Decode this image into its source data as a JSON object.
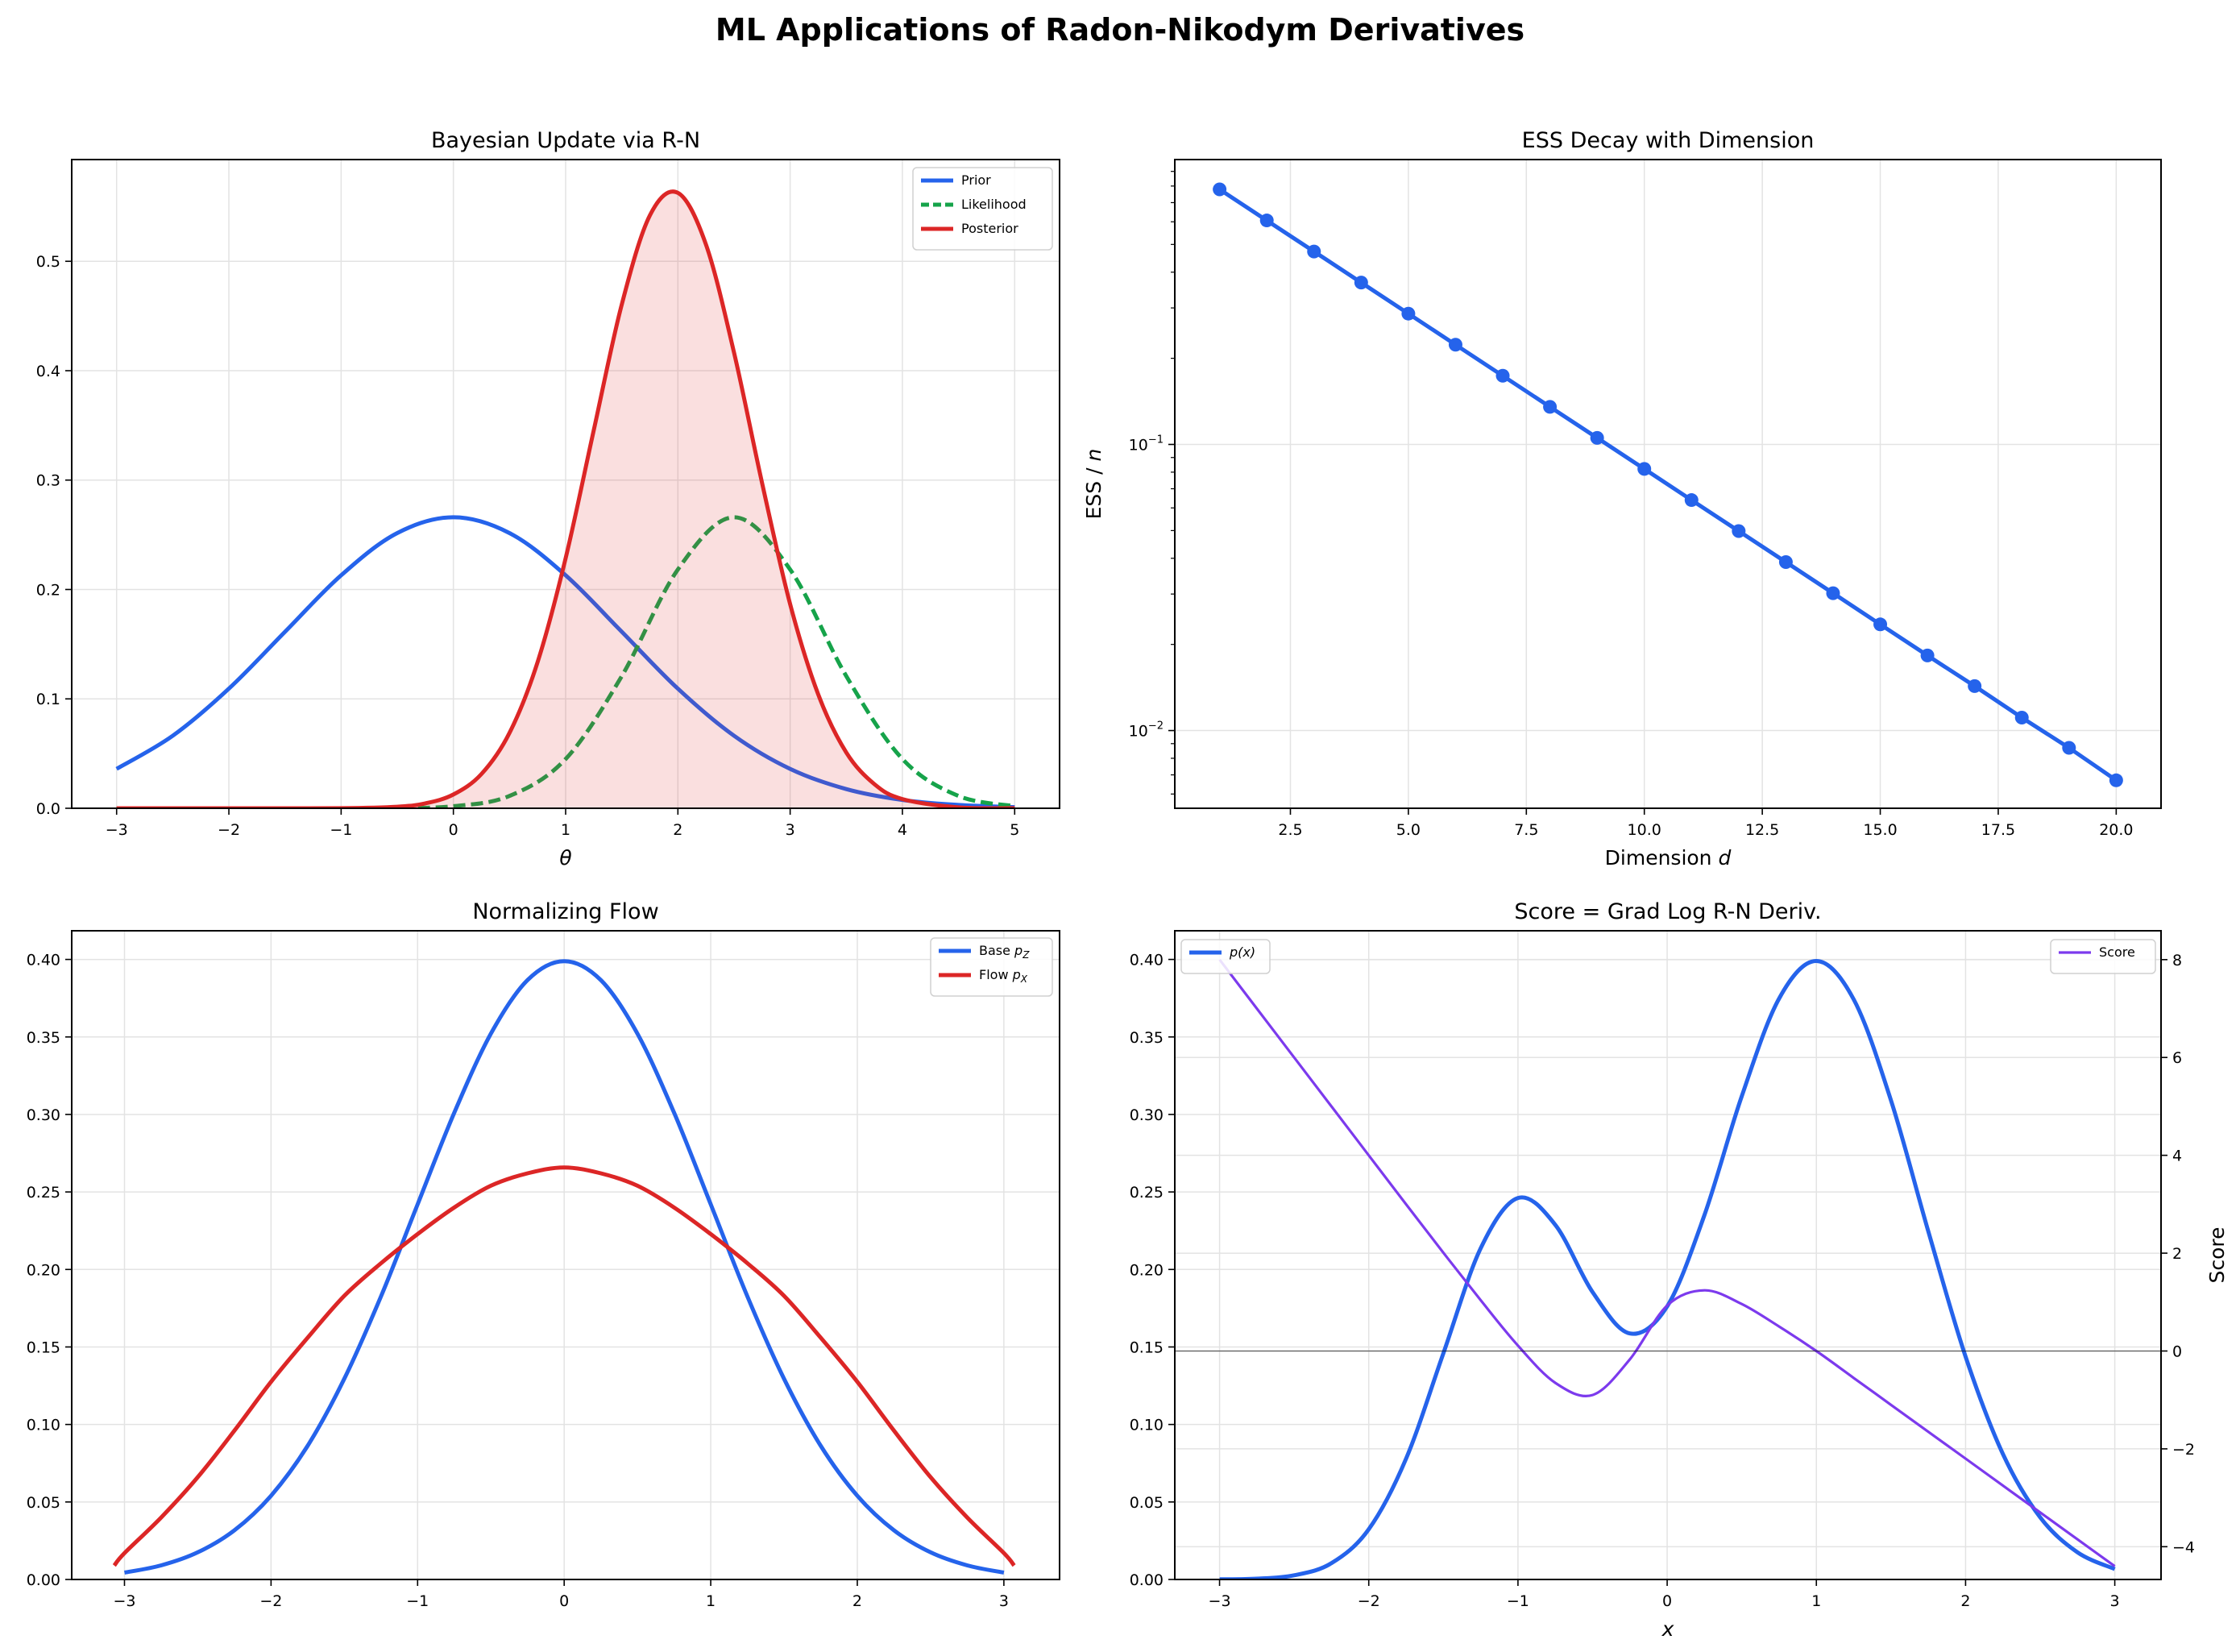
{
  "figure": {
    "title": "ML Applications of Radon-Nikodym Derivatives"
  },
  "chart_data": [
    {
      "type": "line",
      "title": "Bayesian Update via R-N",
      "xlabel_parts": [
        "θ"
      ],
      "xlim": [
        -3.4,
        5.4
      ],
      "ylim": [
        0,
        0.593
      ],
      "grid": true,
      "legend": "top-right",
      "xticks": [
        -3,
        -2,
        -1,
        0,
        1,
        2,
        3,
        4,
        5
      ],
      "xtick_labels": [
        "−3",
        "−2",
        "−1",
        "0",
        "1",
        "2",
        "3",
        "4",
        "5"
      ],
      "yticks": [
        0,
        0.1,
        0.2,
        0.3,
        0.4,
        0.5
      ],
      "ytick_labels": [
        "0.0",
        "0.1",
        "0.2",
        "0.3",
        "0.4",
        "0.5"
      ],
      "series": [
        {
          "name": "Prior",
          "color": "#2563eb",
          "style": "solid",
          "x": [
            -3,
            -2.5,
            -2,
            -1.5,
            -1,
            -0.5,
            0,
            0.5,
            1,
            1.5,
            2,
            2.5,
            3,
            3.5,
            4,
            4.5,
            5
          ],
          "y": [
            0.036,
            0.0663,
            0.1093,
            0.1613,
            0.213,
            0.2516,
            0.266,
            0.2516,
            0.213,
            0.1613,
            0.1093,
            0.0663,
            0.036,
            0.0175,
            0.0076,
            0.003,
            0.001
          ]
        },
        {
          "name": "Likelihood",
          "color": "#16a34a",
          "style": "dashed",
          "x": [
            -3,
            -2.5,
            -2,
            -1.5,
            -1,
            -0.5,
            0,
            0.5,
            1,
            1.5,
            2,
            2.5,
            3,
            3.5,
            4,
            4.5,
            5
          ],
          "y": [
            0,
            0,
            0,
            0,
            2e-05,
            0.0002,
            0.0019,
            0.0113,
            0.045,
            0.1208,
            0.2183,
            0.266,
            0.2183,
            0.1208,
            0.045,
            0.0113,
            0.0019
          ]
        },
        {
          "name": "Posterior",
          "color": "#dc2626",
          "style": "solid",
          "fill": "#dc2626",
          "x": [
            -3,
            -2,
            -1,
            -0.5,
            -0.25,
            0,
            0.25,
            0.5,
            0.75,
            1,
            1.25,
            1.5,
            1.75,
            2,
            2.25,
            2.5,
            2.75,
            3,
            3.25,
            3.5,
            3.75,
            4,
            4.5,
            5
          ],
          "y": [
            0,
            0,
            0.0001,
            0.0014,
            0.0045,
            0.0126,
            0.0313,
            0.0689,
            0.1336,
            0.2286,
            0.3453,
            0.4606,
            0.5419,
            0.5626,
            0.5154,
            0.4165,
            0.2973,
            0.1867,
            0.104,
            0.051,
            0.0221,
            0.0084,
            0.0008,
            0.0001
          ]
        }
      ]
    },
    {
      "type": "line",
      "title": "ESS Decay with Dimension",
      "xlabel_parts": [
        "Dimension ",
        "d"
      ],
      "ylabel_parts": [
        "ESS / ",
        "n"
      ],
      "yscale": "log",
      "xlim": [
        0.05,
        20.95
      ],
      "ylim": [
        0.00535,
        0.99
      ],
      "grid": true,
      "xticks": [
        2.5,
        5,
        7.5,
        10,
        12.5,
        15,
        17.5,
        20
      ],
      "xtick_labels": [
        "2.5",
        "5.0",
        "7.5",
        "10.0",
        "12.5",
        "15.0",
        "17.5",
        "20.0"
      ],
      "yticks": [
        0.1,
        0.01
      ],
      "ytick_labels": [
        {
          "base": "10",
          "exp": "−1"
        },
        {
          "base": "10",
          "exp": "−2"
        }
      ],
      "series": [
        {
          "color": "#2563eb",
          "style": "solid",
          "marker": "circle",
          "x": [
            1,
            2,
            3,
            4,
            5,
            6,
            7,
            8,
            9,
            10,
            11,
            12,
            13,
            14,
            15,
            16,
            17,
            18,
            19,
            20
          ],
          "y": [
            0.7788,
            0.6065,
            0.4724,
            0.3679,
            0.2865,
            0.2231,
            0.1738,
            0.1353,
            0.1054,
            0.0821,
            0.0639,
            0.0498,
            0.0388,
            0.0302,
            0.0235,
            0.0183,
            0.0143,
            0.0111,
            0.0087,
            0.0067
          ]
        }
      ]
    },
    {
      "type": "line",
      "title": "Normalizing Flow",
      "xlim": [
        -3.36,
        3.38
      ],
      "ylim": [
        0,
        0.4185
      ],
      "grid": true,
      "legend": "top-right",
      "xticks": [
        -3,
        -2,
        -1,
        0,
        1,
        2,
        3
      ],
      "xtick_labels": [
        "−3",
        "−2",
        "−1",
        "0",
        "1",
        "2",
        "3"
      ],
      "yticks": [
        0,
        0.05,
        0.1,
        0.15,
        0.2,
        0.25,
        0.3,
        0.35,
        0.4
      ],
      "ytick_labels": [
        "0.00",
        "0.05",
        "0.10",
        "0.15",
        "0.20",
        "0.25",
        "0.30",
        "0.35",
        "0.40"
      ],
      "series": [
        {
          "name": "Base p_Z",
          "name_parts": [
            "Base ",
            "p",
            "Z"
          ],
          "color": "#2563eb",
          "style": "solid",
          "x": [
            -3,
            -2.75,
            -2.5,
            -2.25,
            -2,
            -1.75,
            -1.5,
            -1.25,
            -1,
            -0.75,
            -0.5,
            -0.25,
            0,
            0.25,
            0.5,
            0.75,
            1,
            1.25,
            1.5,
            1.75,
            2,
            2.25,
            2.5,
            2.75,
            3
          ],
          "y": [
            0.0044,
            0.0091,
            0.0175,
            0.0317,
            0.054,
            0.0863,
            0.1295,
            0.1826,
            0.242,
            0.3011,
            0.3521,
            0.3867,
            0.3989,
            0.3867,
            0.3521,
            0.3011,
            0.242,
            0.1826,
            0.1295,
            0.0863,
            0.054,
            0.0317,
            0.0175,
            0.0091,
            0.0044
          ]
        },
        {
          "name": "Flow p_X",
          "name_parts": [
            "Flow ",
            "p",
            "X"
          ],
          "color": "#dc2626",
          "style": "solid",
          "x": [
            -3.07,
            -3,
            -2.75,
            -2.5,
            -2.25,
            -2,
            -1.75,
            -1.5,
            -1.25,
            -1,
            -0.75,
            -0.5,
            -0.25,
            0,
            0.25,
            0.5,
            0.75,
            1,
            1.25,
            1.5,
            1.75,
            2,
            2.25,
            2.5,
            2.75,
            3,
            3.07
          ],
          "y": [
            0.009,
            0.017,
            0.04,
            0.066,
            0.096,
            0.1275,
            0.156,
            0.183,
            0.204,
            0.2228,
            0.24,
            0.254,
            0.262,
            0.2658,
            0.262,
            0.254,
            0.24,
            0.2228,
            0.204,
            0.183,
            0.156,
            0.1275,
            0.096,
            0.066,
            0.04,
            0.017,
            0.009
          ]
        }
      ]
    },
    {
      "type": "line",
      "title": "Score = Grad Log R-N Deriv.",
      "xlabel_parts": [
        "x"
      ],
      "ylabel_right": "Score",
      "ylabel_right_color": "#7c3aed",
      "xlim": [
        -3.3,
        3.31
      ],
      "ylim": [
        0,
        0.4185
      ],
      "ylim_right": [
        -4.67,
        8.59
      ],
      "grid": true,
      "hline_right": 0,
      "xticks": [
        -3,
        -2,
        -1,
        0,
        1,
        2,
        3
      ],
      "xtick_labels": [
        "−3",
        "−2",
        "−1",
        "0",
        "1",
        "2",
        "3"
      ],
      "yticks": [
        0,
        0.05,
        0.1,
        0.15,
        0.2,
        0.25,
        0.3,
        0.35,
        0.4
      ],
      "ytick_labels": [
        "0.00",
        "0.05",
        "0.10",
        "0.15",
        "0.20",
        "0.25",
        "0.30",
        "0.35",
        "0.40"
      ],
      "yticks_right": [
        -4,
        -2,
        0,
        2,
        4,
        6,
        8
      ],
      "ytick_labels_right": [
        "−4",
        "−2",
        "0",
        "2",
        "4",
        "6",
        "8"
      ],
      "series": [
        {
          "name": "p(x)",
          "name_parts": [
            "p(x)"
          ],
          "axis": "left",
          "legend": "top-left",
          "color": "#2563eb",
          "style": "solid",
          "x": [
            -3,
            -2.75,
            -2.5,
            -2.25,
            -2,
            -1.75,
            -1.5,
            -1.25,
            -1,
            -0.75,
            -0.5,
            -0.25,
            0,
            0.25,
            0.5,
            0.75,
            1,
            1.25,
            1.5,
            1.75,
            2,
            2.25,
            2.5,
            2.75,
            3
          ],
          "y": [
            0.0001,
            0.0005,
            0.0027,
            0.0105,
            0.0324,
            0.0779,
            0.1459,
            0.2136,
            0.2461,
            0.2288,
            0.1854,
            0.1587,
            0.1762,
            0.2352,
            0.3118,
            0.3748,
            0.399,
            0.3743,
            0.3091,
            0.2247,
            0.1438,
            0.081,
            0.0401,
            0.0175,
            0.0067
          ]
        },
        {
          "name": "Score",
          "name_parts": [
            "Score"
          ],
          "axis": "right",
          "legend": "top-right",
          "color": "#7c3aed",
          "style": "solid",
          "x": [
            -3,
            -2.75,
            -2.5,
            -2.25,
            -2,
            -1.75,
            -1.5,
            -1.25,
            -1,
            -0.75,
            -0.5,
            -0.25,
            0,
            0.25,
            0.5,
            0.75,
            1,
            1.25,
            1.5,
            1.75,
            2,
            2.25,
            2.5,
            2.75,
            3
          ],
          "y": [
            8.0,
            7.0,
            6.0,
            5.0,
            4.0,
            3.0,
            2.01,
            1.04,
            0.11,
            -0.65,
            -0.9,
            -0.17,
            0.93,
            1.24,
            0.96,
            0.5,
            0,
            -0.55,
            -1.1,
            -1.65,
            -2.2,
            -2.75,
            -3.3,
            -3.85,
            -4.4
          ]
        }
      ]
    }
  ]
}
